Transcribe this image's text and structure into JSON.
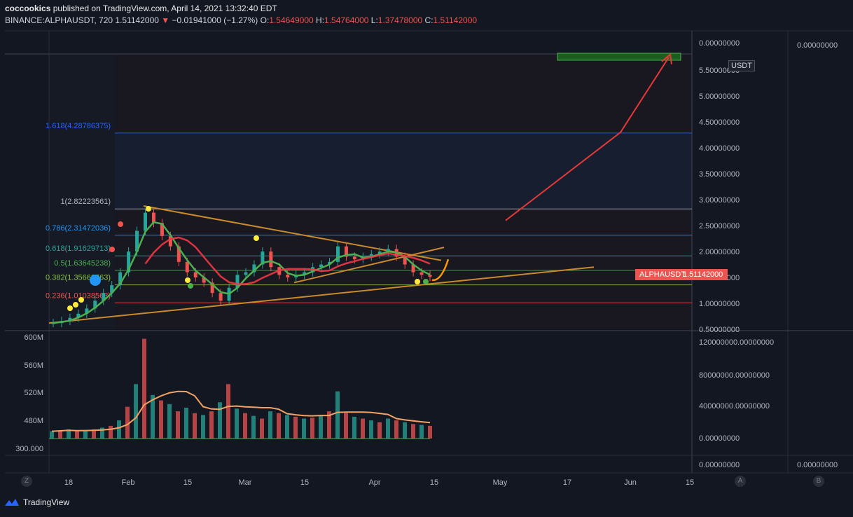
{
  "header": {
    "publisher": "coccookics",
    "published_on": "published on TradingView.com, April 14, 2021 13:32:40 EDT",
    "symbol": "BINANCE:ALPHAUSDT, 720",
    "last": "1.51142000",
    "change": "−0.01941000 (−1.27%)",
    "open_label": "O:",
    "open": "1.54649000",
    "high_label": "H:",
    "high": "1.54764000",
    "low_label": "L:",
    "low": "1.37478000",
    "close_label": "C:",
    "close": "1.51142000"
  },
  "currency_badge": "USDT",
  "price_tag": {
    "symbol": "ALPHAUSDT",
    "value": "1.51142000"
  },
  "corners": {
    "bottom_left": "Z",
    "auto": "A",
    "bottom_right": "B"
  },
  "brand": "TradingView",
  "colors": {
    "background": "#131722",
    "up": "#26a69a",
    "down": "#ef5350",
    "trendline": "#c88a2a",
    "arrow": "#e53935",
    "ma_fast": "#4caf50",
    "ma_slow": "#f23645",
    "volume_ma": "#f4a261",
    "fib_blue": "#2962ff"
  },
  "chart_data": [
    {
      "type": "line",
      "title": "",
      "xlabel": "",
      "ylabel": "",
      "x_ticks": [
        "18",
        "Feb",
        "15",
        "Mar",
        "15",
        "Apr",
        "15",
        "May",
        "17",
        "Jun",
        "15"
      ],
      "y_ticks": [
        "0.50000000",
        "1.00000000",
        "1.50000000",
        "2.00000000",
        "2.50000000",
        "3.00000000",
        "3.50000000",
        "4.00000000",
        "4.50000000",
        "5.00000000",
        "5.50000000",
        "0.00000000"
      ],
      "ylim": [
        0.5,
        5.8
      ],
      "price_axis_extra": "0.00000000",
      "fib_levels": [
        {
          "label": "1.618(4.28786375)",
          "value": 4.28786375
        },
        {
          "label": "1(2.82223561)",
          "value": 2.82223561
        },
        {
          "label": "0.786(2.31472036)",
          "value": 2.31472036
        },
        {
          "label": "0.618(1.91629713)",
          "value": 1.91629713
        },
        {
          "label": "0.5(1.63645238)",
          "value": 1.63645238
        },
        {
          "label": "0.382(1.35660763)",
          "value": 1.35660763
        },
        {
          "label": "0.236(1.01038563)",
          "value": 1.01038563
        }
      ],
      "series": [
        {
          "values": [
            0.62,
            0.66,
            0.72,
            0.8,
            0.9,
            1.05,
            1.2,
            1.35,
            1.6,
            2.0,
            2.4,
            2.75,
            2.55,
            2.3,
            2.1,
            1.8,
            1.6,
            1.5,
            1.4,
            1.2,
            1.05,
            1.3,
            1.55,
            1.6,
            1.75,
            2.0,
            1.7,
            1.55,
            1.5,
            1.55,
            1.6,
            1.7,
            1.75,
            1.8,
            2.1,
            1.9,
            1.85,
            1.9,
            1.95,
            2.0,
            2.05,
            1.9,
            1.75,
            1.6,
            1.55,
            1.51
          ]
        }
      ],
      "projection": [
        [
          1.51,
          1.6
        ],
        [
          2.6,
          4.3,
          5.75
        ]
      ]
    },
    {
      "type": "bar",
      "title": "",
      "y_ticks_left": [
        "600M",
        "560M",
        "520M",
        "480M",
        "300.000"
      ],
      "y_ticks_right": [
        "120000000.00000000",
        "80000000.00000000",
        "40000000.00000000",
        "0.00000000"
      ],
      "ylim": [
        0,
        120000000
      ],
      "series": [
        {
          "values": [
            8,
            9,
            10,
            8,
            9,
            10,
            12,
            14,
            20,
            35,
            60,
            110,
            48,
            42,
            38,
            30,
            34,
            28,
            26,
            30,
            40,
            60,
            33,
            28,
            25,
            22,
            30,
            28,
            26,
            24,
            22,
            23,
            25,
            30,
            52,
            28,
            24,
            22,
            20,
            18,
            22,
            20,
            18,
            16,
            15,
            14
          ]
        }
      ]
    }
  ]
}
